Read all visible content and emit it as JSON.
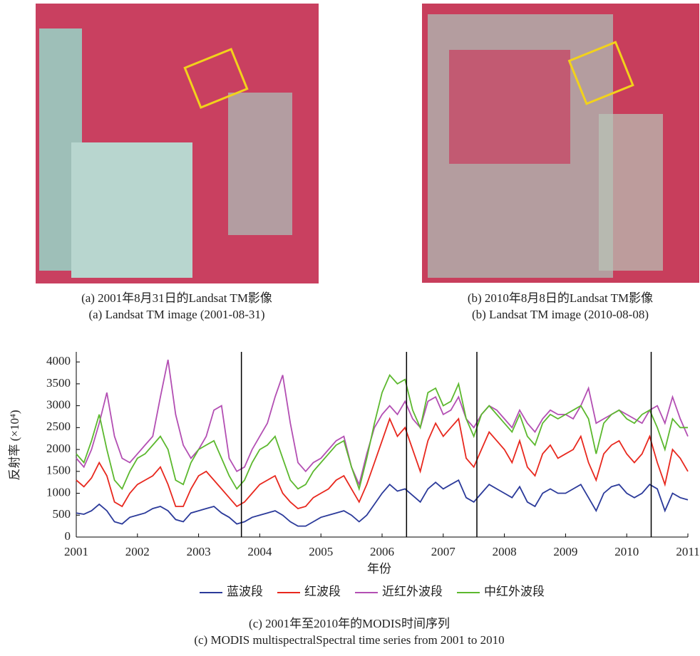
{
  "panels": [
    {
      "caption_zh": "(a) 2001年8月31日的Landsat TM影像",
      "caption_en": "(a) Landsat TM image (2001-08-31)"
    },
    {
      "caption_zh": "(b) 2010年8月8日的Landsat TM影像",
      "caption_en": "(b) Landsat TM image (2010-08-08)"
    }
  ],
  "chart_data": {
    "type": "line",
    "caption_zh": "(c) 2001年至2010年的MODIS时间序列",
    "caption_en": "(c) MODIS multispectralSpectral time series from 2001 to 2010",
    "x_label": "年份",
    "y_label": "反射率 (×10⁴)",
    "xlim": [
      2001,
      2011
    ],
    "ylim": [
      0,
      4100
    ],
    "xticks": [
      2001,
      2002,
      2003,
      2004,
      2005,
      2006,
      2007,
      2008,
      2009,
      2010,
      2011
    ],
    "yticks": [
      0,
      500,
      1000,
      1500,
      2000,
      2500,
      3000,
      3500,
      4000
    ],
    "vlines": [
      2003.7,
      2006.4,
      2007.55,
      2010.4
    ],
    "x": [
      2001,
      2001.125,
      2001.25,
      2001.375,
      2001.5,
      2001.625,
      2001.75,
      2001.875,
      2002,
      2002.125,
      2002.25,
      2002.375,
      2002.5,
      2002.625,
      2002.75,
      2002.875,
      2003,
      2003.125,
      2003.25,
      2003.375,
      2003.5,
      2003.625,
      2003.75,
      2003.875,
      2004,
      2004.125,
      2004.25,
      2004.375,
      2004.5,
      2004.625,
      2004.75,
      2004.875,
      2005,
      2005.125,
      2005.25,
      2005.375,
      2005.5,
      2005.625,
      2005.75,
      2005.875,
      2006,
      2006.125,
      2006.25,
      2006.375,
      2006.5,
      2006.625,
      2006.75,
      2006.875,
      2007,
      2007.125,
      2007.25,
      2007.375,
      2007.5,
      2007.625,
      2007.75,
      2007.875,
      2008,
      2008.125,
      2008.25,
      2008.375,
      2008.5,
      2008.625,
      2008.75,
      2008.875,
      2009,
      2009.125,
      2009.25,
      2009.375,
      2009.5,
      2009.625,
      2009.75,
      2009.875,
      2010,
      2010.125,
      2010.25,
      2010.375,
      2010.5,
      2010.625,
      2010.75,
      2010.875,
      2011
    ],
    "series": [
      {
        "name": "蓝波段",
        "color": "#2b3a9a",
        "values": [
          550,
          520,
          600,
          750,
          600,
          350,
          300,
          450,
          500,
          550,
          650,
          700,
          600,
          400,
          350,
          550,
          600,
          650,
          700,
          550,
          450,
          300,
          350,
          450,
          500,
          550,
          600,
          500,
          350,
          250,
          250,
          350,
          450,
          500,
          550,
          600,
          500,
          350,
          500,
          750,
          1000,
          1200,
          1050,
          1100,
          950,
          800,
          1100,
          1250,
          1100,
          1200,
          1300,
          900,
          800,
          1000,
          1200,
          1100,
          1000,
          900,
          1150,
          800,
          700,
          1000,
          1100,
          1000,
          1000,
          1100,
          1200,
          900,
          600,
          1000,
          1150,
          1200,
          1000,
          900,
          1000,
          1200,
          1100,
          600,
          1000,
          900,
          850
        ]
      },
      {
        "name": "红波段",
        "color": "#e8281e",
        "values": [
          1300,
          1150,
          1350,
          1700,
          1400,
          800,
          700,
          1000,
          1200,
          1300,
          1400,
          1600,
          1200,
          700,
          700,
          1100,
          1400,
          1500,
          1300,
          1100,
          900,
          700,
          800,
          1000,
          1200,
          1300,
          1400,
          1000,
          800,
          650,
          700,
          900,
          1000,
          1100,
          1300,
          1400,
          1100,
          800,
          1200,
          1700,
          2200,
          2700,
          2300,
          2500,
          2000,
          1500,
          2200,
          2600,
          2300,
          2500,
          2700,
          1800,
          1600,
          2000,
          2400,
          2200,
          2000,
          1700,
          2200,
          1600,
          1400,
          1900,
          2100,
          1800,
          1900,
          2000,
          2300,
          1700,
          1300,
          1900,
          2100,
          2200,
          1900,
          1700,
          1900,
          2300,
          1700,
          1200,
          2000,
          1800,
          1500
        ]
      },
      {
        "name": "近红外波段",
        "color": "#b34fb3",
        "values": [
          1800,
          1600,
          2000,
          2600,
          3300,
          2300,
          1800,
          1700,
          1900,
          2100,
          2300,
          3200,
          4050,
          2800,
          2100,
          1800,
          2000,
          2300,
          2900,
          3000,
          1800,
          1500,
          1600,
          2000,
          2300,
          2600,
          3200,
          3700,
          2600,
          1700,
          1500,
          1700,
          1800,
          2000,
          2200,
          2300,
          1600,
          1200,
          1900,
          2500,
          2800,
          3000,
          2800,
          3100,
          2700,
          2500,
          3100,
          3200,
          2800,
          2900,
          3200,
          2700,
          2500,
          2800,
          3000,
          2900,
          2700,
          2500,
          2900,
          2600,
          2400,
          2700,
          2900,
          2800,
          2800,
          2700,
          3000,
          3400,
          2600,
          2700,
          2800,
          2900,
          2800,
          2700,
          2600,
          2900,
          3000,
          2600,
          3200,
          2700,
          2300
        ]
      },
      {
        "name": "中红外波段",
        "color": "#5cb82e",
        "values": [
          1900,
          1700,
          2200,
          2800,
          2000,
          1300,
          1100,
          1500,
          1800,
          1900,
          2100,
          2300,
          2000,
          1300,
          1200,
          1700,
          2000,
          2100,
          2200,
          1800,
          1400,
          1100,
          1300,
          1700,
          2000,
          2100,
          2300,
          1800,
          1300,
          1100,
          1200,
          1500,
          1700,
          1900,
          2100,
          2200,
          1600,
          1100,
          1800,
          2600,
          3300,
          3700,
          3500,
          3600,
          2900,
          2500,
          3300,
          3400,
          3000,
          3100,
          3500,
          2700,
          2300,
          2800,
          3000,
          2800,
          2600,
          2400,
          2800,
          2300,
          2100,
          2600,
          2800,
          2700,
          2800,
          2900,
          3000,
          2700,
          1900,
          2600,
          2800,
          2900,
          2700,
          2600,
          2800,
          2900,
          2500,
          2000,
          2700,
          2500,
          2500
        ]
      }
    ]
  }
}
